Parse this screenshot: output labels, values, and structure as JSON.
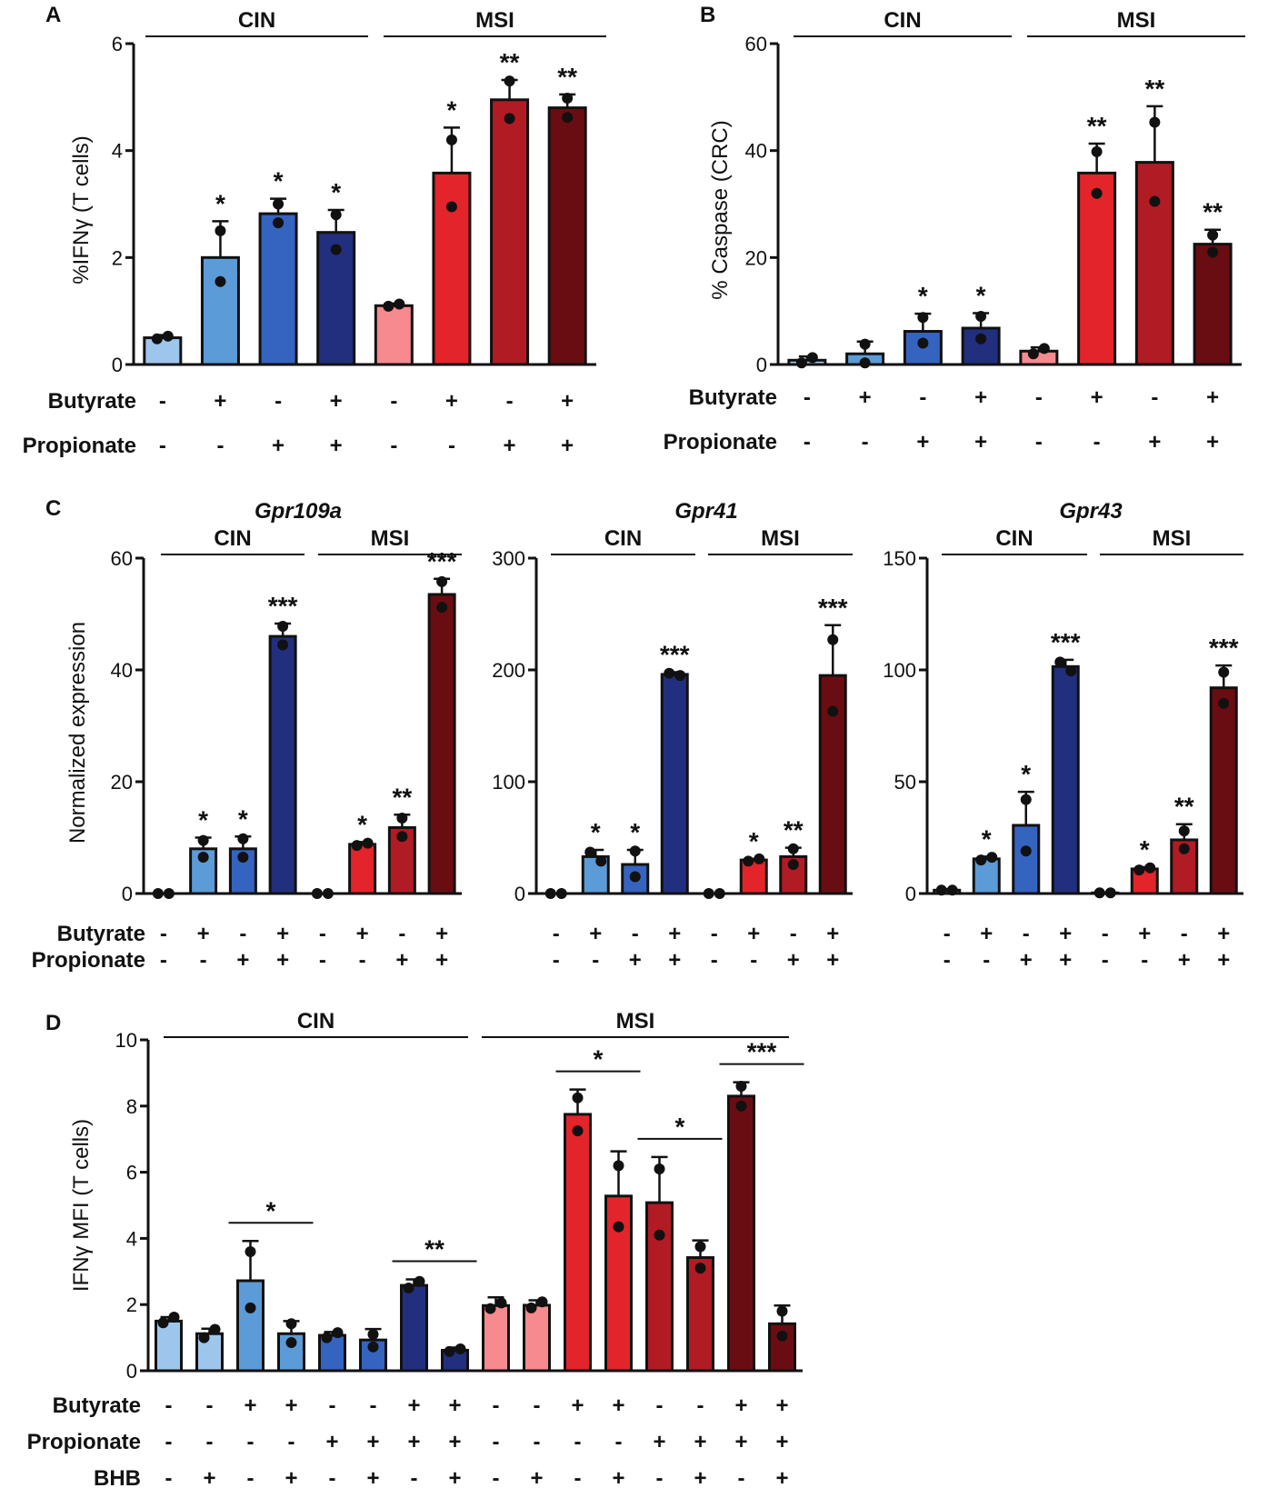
{
  "colors": {
    "cin_1": "#9ec6ec",
    "cin_2": "#5b9bd8",
    "cin_3": "#3563c0",
    "cin_4": "#222f7e",
    "msi_1": "#f68a8f",
    "msi_2": "#e3242b",
    "msi_3": "#b11b24",
    "msi_4": "#6a0d12",
    "axis": "#111111",
    "dot": "#111111"
  },
  "panels": [
    {
      "label": "A",
      "groups": [
        "CIN",
        "MSI"
      ]
    },
    {
      "label": "B",
      "groups": [
        "CIN",
        "MSI"
      ]
    },
    {
      "label": "C",
      "groups": [
        "CIN",
        "MSI"
      ]
    },
    {
      "label": "D",
      "groups": [
        "CIN",
        "MSI"
      ]
    }
  ],
  "row_labels": {
    "butyrate": "Butyrate",
    "propionate": "Propionate",
    "bhb": "BHB"
  },
  "chart_data": [
    {
      "id": "A",
      "type": "bar",
      "title": "",
      "ylabel": "%IFNγ (T cells)",
      "ylim": [
        0,
        6
      ],
      "yticks": [
        "0",
        "2",
        "4",
        "6"
      ],
      "groups": [
        "CIN",
        "MSI"
      ],
      "rows": [
        {
          "name": "Butyrate",
          "signs": [
            "-",
            "+",
            "-",
            "+",
            "-",
            "+",
            "-",
            "+"
          ]
        },
        {
          "name": "Propionate",
          "signs": [
            "-",
            "-",
            "+",
            "+",
            "-",
            "-",
            "+",
            "+"
          ]
        }
      ],
      "bars": [
        {
          "value": 0.5,
          "err": 0.05,
          "points": [
            0.48,
            0.53
          ],
          "color": "cin_1",
          "sig": ""
        },
        {
          "value": 2.0,
          "err": 0.68,
          "points": [
            2.5,
            1.55
          ],
          "color": "cin_2",
          "sig": "*"
        },
        {
          "value": 2.82,
          "err": 0.28,
          "points": [
            3.0,
            2.65
          ],
          "color": "cin_3",
          "sig": "*"
        },
        {
          "value": 2.47,
          "err": 0.42,
          "points": [
            2.8,
            2.15
          ],
          "color": "cin_4",
          "sig": "*"
        },
        {
          "value": 1.1,
          "err": 0.04,
          "points": [
            1.09,
            1.13
          ],
          "color": "msi_1",
          "sig": ""
        },
        {
          "value": 3.58,
          "err": 0.85,
          "points": [
            4.2,
            2.95
          ],
          "color": "msi_2",
          "sig": "*"
        },
        {
          "value": 4.95,
          "err": 0.37,
          "points": [
            5.3,
            4.6
          ],
          "color": "msi_3",
          "sig": "**"
        },
        {
          "value": 4.8,
          "err": 0.25,
          "points": [
            4.98,
            4.62
          ],
          "color": "msi_4",
          "sig": "**"
        }
      ]
    },
    {
      "id": "B",
      "type": "bar",
      "title": "",
      "ylabel": "% Caspase (CRC)",
      "ylim": [
        0,
        60
      ],
      "yticks": [
        "0",
        "20",
        "40",
        "60"
      ],
      "groups": [
        "CIN",
        "MSI"
      ],
      "rows": [
        {
          "name": "Butyrate",
          "signs": [
            "-",
            "+",
            "-",
            "+",
            "-",
            "+",
            "-",
            "+"
          ]
        },
        {
          "name": "Propionate",
          "signs": [
            "-",
            "-",
            "+",
            "+",
            "-",
            "-",
            "+",
            "+"
          ]
        }
      ],
      "bars": [
        {
          "value": 0.8,
          "err": 0.7,
          "points": [
            0.3,
            1.3
          ],
          "color": "cin_1",
          "sig": ""
        },
        {
          "value": 2.0,
          "err": 2.3,
          "points": [
            3.8,
            0.3
          ],
          "color": "cin_2",
          "sig": ""
        },
        {
          "value": 6.2,
          "err": 3.3,
          "points": [
            8.8,
            4.0
          ],
          "color": "cin_3",
          "sig": "*"
        },
        {
          "value": 6.8,
          "err": 2.8,
          "points": [
            9.0,
            4.8
          ],
          "color": "cin_4",
          "sig": "*"
        },
        {
          "value": 2.5,
          "err": 0.7,
          "points": [
            2.0,
            3.0
          ],
          "color": "msi_1",
          "sig": ""
        },
        {
          "value": 35.8,
          "err": 5.5,
          "points": [
            39.8,
            32.0
          ],
          "color": "msi_2",
          "sig": "**"
        },
        {
          "value": 37.8,
          "err": 10.5,
          "points": [
            45.3,
            30.5
          ],
          "color": "msi_3",
          "sig": "**"
        },
        {
          "value": 22.5,
          "err": 2.7,
          "points": [
            24.2,
            21.0
          ],
          "color": "msi_4",
          "sig": "**"
        }
      ]
    },
    {
      "id": "C1",
      "type": "bar",
      "title": "Gpr109a",
      "ylabel": "Normalized expression",
      "ylim": [
        0,
        60
      ],
      "yticks": [
        "0",
        "20",
        "40",
        "60"
      ],
      "groups": [
        "CIN",
        "MSI"
      ],
      "rows": [
        {
          "name": "Butyrate",
          "signs": [
            "-",
            "+",
            "-",
            "+",
            "-",
            "+",
            "-",
            "+"
          ]
        },
        {
          "name": "Propionate",
          "signs": [
            "-",
            "-",
            "+",
            "+",
            "-",
            "-",
            "+",
            "+"
          ]
        }
      ],
      "bars": [
        {
          "value": 0,
          "err": 0,
          "points": [
            0,
            0
          ],
          "color": "cin_1",
          "sig": ""
        },
        {
          "value": 8.0,
          "err": 2.0,
          "points": [
            9.5,
            6.5
          ],
          "color": "cin_2",
          "sig": "*"
        },
        {
          "value": 8.0,
          "err": 2.2,
          "points": [
            9.8,
            6.5
          ],
          "color": "cin_3",
          "sig": "*"
        },
        {
          "value": 46.0,
          "err": 2.3,
          "points": [
            47.8,
            44.5
          ],
          "color": "cin_4",
          "sig": "***"
        },
        {
          "value": 0,
          "err": 0,
          "points": [
            0,
            0
          ],
          "color": "msi_1",
          "sig": ""
        },
        {
          "value": 8.8,
          "err": 0.4,
          "points": [
            8.6,
            9.0
          ],
          "color": "msi_2",
          "sig": "*"
        },
        {
          "value": 11.8,
          "err": 2.3,
          "points": [
            13.5,
            10.2
          ],
          "color": "msi_3",
          "sig": "**"
        },
        {
          "value": 53.5,
          "err": 2.8,
          "points": [
            55.8,
            51.2
          ],
          "color": "msi_4",
          "sig": "***"
        }
      ]
    },
    {
      "id": "C2",
      "type": "bar",
      "title": "Gpr41",
      "ylabel": "",
      "ylim": [
        0,
        300
      ],
      "yticks": [
        "0",
        "100",
        "200",
        "300"
      ],
      "groups": [
        "CIN",
        "MSI"
      ],
      "rows": [
        {
          "name": "Butyrate",
          "signs": [
            "-",
            "+",
            "-",
            "+",
            "-",
            "+",
            "-",
            "+"
          ]
        },
        {
          "name": "Propionate",
          "signs": [
            "-",
            "-",
            "+",
            "+",
            "-",
            "-",
            "+",
            "+"
          ]
        }
      ],
      "bars": [
        {
          "value": 0,
          "err": 0,
          "points": [
            0,
            0
          ],
          "color": "cin_1",
          "sig": ""
        },
        {
          "value": 33,
          "err": 6,
          "points": [
            37,
            29
          ],
          "color": "cin_2",
          "sig": "*"
        },
        {
          "value": 26,
          "err": 13,
          "points": [
            38,
            15
          ],
          "color": "cin_3",
          "sig": "*"
        },
        {
          "value": 196,
          "err": 2,
          "points": [
            197,
            195
          ],
          "color": "cin_4",
          "sig": "***"
        },
        {
          "value": 0,
          "err": 0,
          "points": [
            0,
            0
          ],
          "color": "msi_1",
          "sig": ""
        },
        {
          "value": 30,
          "err": 1,
          "points": [
            29,
            31
          ],
          "color": "msi_2",
          "sig": "*"
        },
        {
          "value": 33,
          "err": 8,
          "points": [
            40,
            26
          ],
          "color": "msi_3",
          "sig": "**"
        },
        {
          "value": 195,
          "err": 45,
          "points": [
            227,
            163
          ],
          "color": "msi_4",
          "sig": "***"
        }
      ]
    },
    {
      "id": "C3",
      "type": "bar",
      "title": "Gpr43",
      "ylabel": "",
      "ylim": [
        0,
        150
      ],
      "yticks": [
        "0",
        "50",
        "100",
        "150"
      ],
      "groups": [
        "CIN",
        "MSI"
      ],
      "rows": [
        {
          "name": "Butyrate",
          "signs": [
            "-",
            "+",
            "-",
            "+",
            "-",
            "+",
            "-",
            "+"
          ]
        },
        {
          "name": "Propionate",
          "signs": [
            "-",
            "-",
            "+",
            "+",
            "-",
            "-",
            "+",
            "+"
          ]
        }
      ],
      "bars": [
        {
          "value": 1.5,
          "err": 0.5,
          "points": [
            1.5,
            1.5
          ],
          "color": "cin_1",
          "sig": ""
        },
        {
          "value": 15.5,
          "err": 1.0,
          "points": [
            15,
            16.2
          ],
          "color": "cin_2",
          "sig": "*"
        },
        {
          "value": 30.5,
          "err": 15,
          "points": [
            42,
            19
          ],
          "color": "cin_3",
          "sig": "*"
        },
        {
          "value": 101.5,
          "err": 3,
          "points": [
            103.5,
            99.5
          ],
          "color": "cin_4",
          "sig": "***"
        },
        {
          "value": 0.3,
          "err": 0,
          "points": [
            0.3,
            0.3
          ],
          "color": "msi_1",
          "sig": ""
        },
        {
          "value": 11.0,
          "err": 0.8,
          "points": [
            10.5,
            11.5
          ],
          "color": "msi_2",
          "sig": "*"
        },
        {
          "value": 24,
          "err": 7,
          "points": [
            28,
            20
          ],
          "color": "msi_3",
          "sig": "**"
        },
        {
          "value": 92,
          "err": 10,
          "points": [
            99,
            85
          ],
          "color": "msi_4",
          "sig": "***"
        }
      ]
    },
    {
      "id": "D",
      "type": "bar",
      "title": "",
      "ylabel": "IFNγ MFI (T cells)",
      "ylim": [
        0,
        10
      ],
      "yticks": [
        "0",
        "2",
        "4",
        "6",
        "8",
        "10"
      ],
      "groups": [
        "CIN",
        "MSI"
      ],
      "rows": [
        {
          "name": "Butyrate",
          "signs": [
            "-",
            "-",
            "+",
            "+",
            "-",
            "-",
            "+",
            "+",
            "-",
            "-",
            "+",
            "+",
            "-",
            "-",
            "+",
            "+"
          ]
        },
        {
          "name": "Propionate",
          "signs": [
            "-",
            "-",
            "-",
            "-",
            "+",
            "+",
            "+",
            "+",
            "-",
            "-",
            "-",
            "-",
            "+",
            "+",
            "+",
            "+"
          ]
        },
        {
          "name": "BHB",
          "signs": [
            "-",
            "+",
            "-",
            "+",
            "-",
            "+",
            "-",
            "+",
            "-",
            "+",
            "-",
            "+",
            "-",
            "+",
            "-",
            "+"
          ]
        }
      ],
      "bars": [
        {
          "value": 1.5,
          "err": 0.12,
          "points": [
            1.45,
            1.62
          ],
          "color": "cin_1"
        },
        {
          "value": 1.12,
          "err": 0.15,
          "points": [
            1.0,
            1.25
          ],
          "color": "cin_1"
        },
        {
          "value": 2.72,
          "err": 1.2,
          "points": [
            3.6,
            1.9
          ],
          "color": "cin_2"
        },
        {
          "value": 1.12,
          "err": 0.38,
          "points": [
            1.42,
            0.85
          ],
          "color": "cin_2"
        },
        {
          "value": 1.07,
          "err": 0.1,
          "points": [
            1.0,
            1.15
          ],
          "color": "cin_3"
        },
        {
          "value": 0.93,
          "err": 0.33,
          "points": [
            1.1,
            0.72
          ],
          "color": "cin_3"
        },
        {
          "value": 2.58,
          "err": 0.18,
          "points": [
            2.5,
            2.7
          ],
          "color": "cin_4"
        },
        {
          "value": 0.62,
          "err": 0.08,
          "points": [
            0.58,
            0.66
          ],
          "color": "cin_4"
        },
        {
          "value": 1.97,
          "err": 0.25,
          "points": [
            1.88,
            2.05
          ],
          "color": "msi_1"
        },
        {
          "value": 1.98,
          "err": 0.15,
          "points": [
            1.9,
            2.08
          ],
          "color": "msi_1"
        },
        {
          "value": 7.75,
          "err": 0.75,
          "points": [
            8.25,
            7.25
          ],
          "color": "msi_2"
        },
        {
          "value": 5.28,
          "err": 1.35,
          "points": [
            6.2,
            4.35
          ],
          "color": "msi_2"
        },
        {
          "value": 5.08,
          "err": 1.38,
          "points": [
            6.1,
            4.1
          ],
          "color": "msi_3"
        },
        {
          "value": 3.42,
          "err": 0.52,
          "points": [
            3.75,
            3.1
          ],
          "color": "msi_3"
        },
        {
          "value": 8.3,
          "err": 0.42,
          "points": [
            8.6,
            8.0
          ],
          "color": "msi_4"
        },
        {
          "value": 1.42,
          "err": 0.55,
          "points": [
            1.8,
            1.05
          ],
          "color": "msi_4"
        }
      ],
      "comparisons": [
        {
          "from": 2,
          "to": 3,
          "label": "*"
        },
        {
          "from": 6,
          "to": 7,
          "label": "**"
        },
        {
          "from": 10,
          "to": 11,
          "label": "*"
        },
        {
          "from": 12,
          "to": 13,
          "label": "*"
        },
        {
          "from": 14,
          "to": 15,
          "label": "***"
        }
      ]
    }
  ]
}
